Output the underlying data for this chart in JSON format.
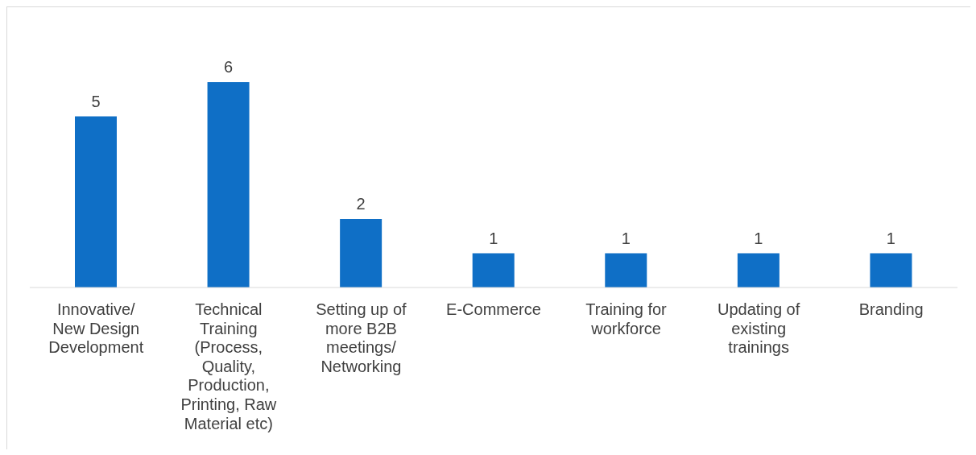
{
  "chart_data": {
    "type": "bar",
    "categories": [
      "Innovative/ New Design Development",
      "Technical Training (Process, Quality, Production, Printing, Raw Material etc)",
      "Setting up of more B2B meetings/ Networking",
      "E-Commerce",
      "Training for workforce",
      "Updating of existing trainings",
      "Branding"
    ],
    "values": [
      5,
      6,
      2,
      1,
      1,
      1,
      1
    ],
    "color": "#0f6fc6",
    "data_labels": true,
    "grid": false,
    "legend": false
  }
}
